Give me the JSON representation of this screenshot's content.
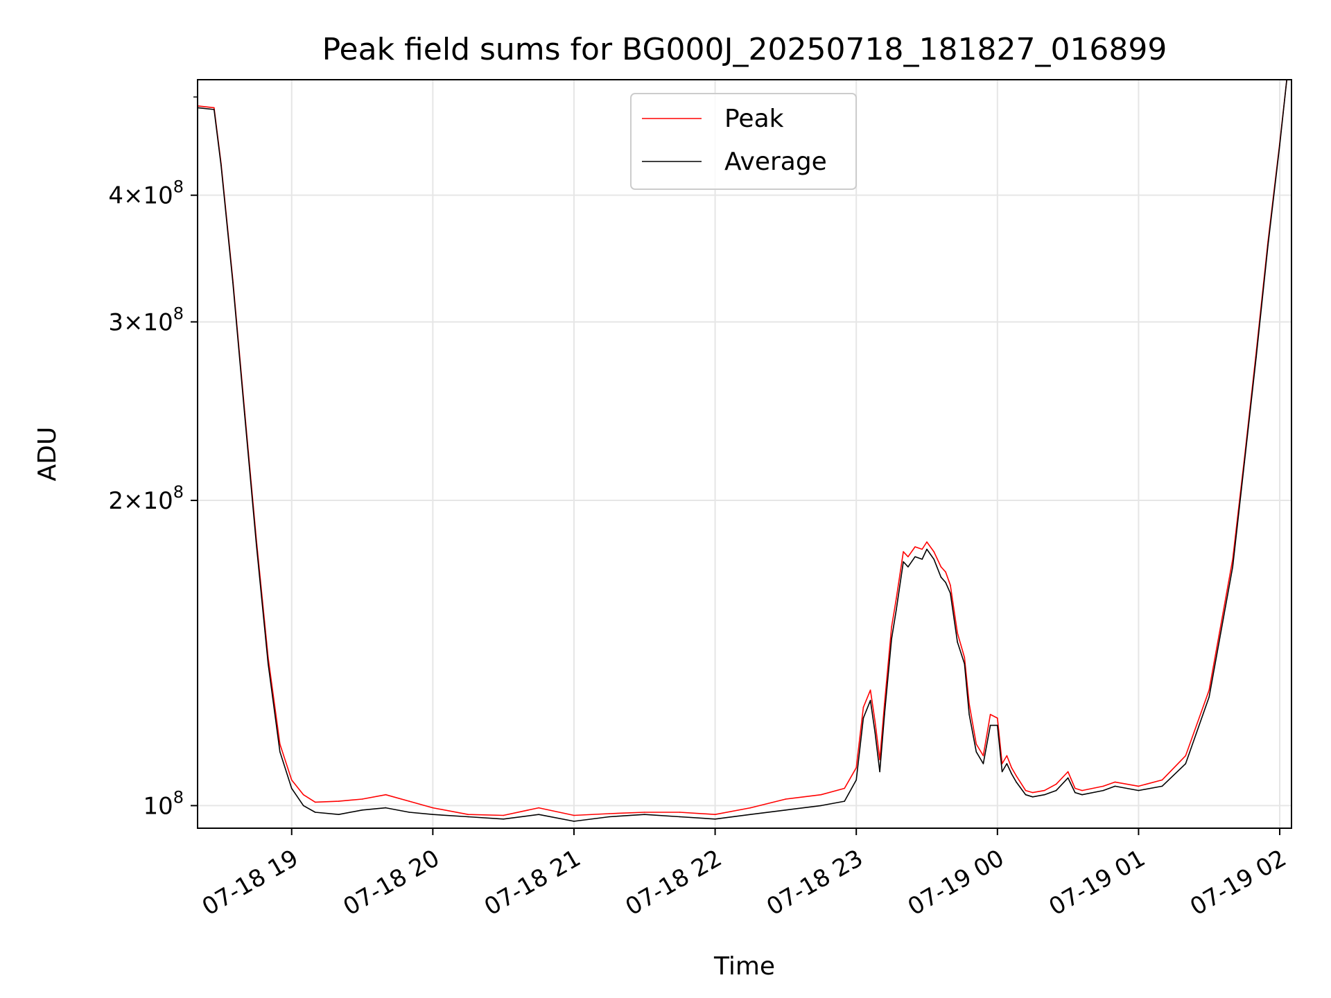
{
  "chart_data": {
    "type": "line",
    "title": "Peak field sums for BG000J_20250718_181827_016899",
    "xlabel": "Time",
    "ylabel": "ADU",
    "yscale": "log",
    "xlim": [
      "2025-07-18 18:20",
      "2025-07-19 02:05"
    ],
    "ylim": [
      95000000,
      520000000
    ],
    "x_ticks": [
      "2025-07-18 19:00",
      "2025-07-18 20:00",
      "2025-07-18 21:00",
      "2025-07-18 22:00",
      "2025-07-18 23:00",
      "2025-07-19 00:00",
      "2025-07-19 01:00",
      "2025-07-19 02:00"
    ],
    "x_tick_labels": [
      "07-18 19",
      "07-18 20",
      "07-18 21",
      "07-18 22",
      "07-18 23",
      "07-19 00",
      "07-19 01",
      "07-19 02"
    ],
    "y_ticks": [
      100000000,
      200000000,
      300000000,
      400000000
    ],
    "y_minor_ticks": [
      500000000
    ],
    "y_tick_labels": [
      {
        "coef": "",
        "exp": "8"
      },
      {
        "coef": "2",
        "exp": "8"
      },
      {
        "coef": "3",
        "exp": "8"
      },
      {
        "coef": "4",
        "exp": "8"
      }
    ],
    "grid": true,
    "legend_position": "upper center",
    "series": [
      {
        "name": "Peak",
        "color": "#ff0000",
        "x": [
          "2025-07-18 18:20",
          "2025-07-18 18:27",
          "2025-07-18 18:30",
          "2025-07-18 18:35",
          "2025-07-18 18:40",
          "2025-07-18 18:45",
          "2025-07-18 18:50",
          "2025-07-18 18:55",
          "2025-07-18 19:00",
          "2025-07-18 19:05",
          "2025-07-18 19:10",
          "2025-07-18 19:20",
          "2025-07-18 19:30",
          "2025-07-18 19:40",
          "2025-07-18 19:50",
          "2025-07-18 20:00",
          "2025-07-18 20:15",
          "2025-07-18 20:30",
          "2025-07-18 20:45",
          "2025-07-18 21:00",
          "2025-07-18 21:15",
          "2025-07-18 21:30",
          "2025-07-18 21:45",
          "2025-07-18 22:00",
          "2025-07-18 22:15",
          "2025-07-18 22:30",
          "2025-07-18 22:45",
          "2025-07-18 22:55",
          "2025-07-18 23:00",
          "2025-07-18 23:03",
          "2025-07-18 23:06",
          "2025-07-18 23:08",
          "2025-07-18 23:10",
          "2025-07-18 23:12",
          "2025-07-18 23:15",
          "2025-07-18 23:17",
          "2025-07-18 23:20",
          "2025-07-18 23:22",
          "2025-07-18 23:25",
          "2025-07-18 23:28",
          "2025-07-18 23:30",
          "2025-07-18 23:33",
          "2025-07-18 23:36",
          "2025-07-18 23:38",
          "2025-07-18 23:40",
          "2025-07-18 23:43",
          "2025-07-18 23:46",
          "2025-07-18 23:48",
          "2025-07-18 23:51",
          "2025-07-18 23:54",
          "2025-07-18 23:57",
          "2025-07-19 00:00",
          "2025-07-19 00:02",
          "2025-07-19 00:04",
          "2025-07-19 00:06",
          "2025-07-19 00:08",
          "2025-07-19 00:12",
          "2025-07-19 00:15",
          "2025-07-19 00:20",
          "2025-07-19 00:25",
          "2025-07-19 00:30",
          "2025-07-19 00:33",
          "2025-07-19 00:36",
          "2025-07-19 00:45",
          "2025-07-19 00:50",
          "2025-07-19 01:00",
          "2025-07-19 01:10",
          "2025-07-19 01:20",
          "2025-07-19 01:30",
          "2025-07-19 01:40",
          "2025-07-19 01:45",
          "2025-07-19 01:50",
          "2025-07-19 01:55",
          "2025-07-19 02:00",
          "2025-07-19 02:03"
        ],
        "values": [
          490000000,
          488000000,
          430000000,
          330000000,
          245000000,
          183000000,
          140000000,
          115000000,
          106000000,
          102500000,
          100800000,
          101000000,
          101500000,
          102500000,
          101000000,
          99500000,
          98000000,
          97800000,
          99500000,
          97800000,
          98200000,
          98500000,
          98500000,
          98000000,
          99500000,
          101500000,
          102500000,
          104000000,
          109000000,
          125000000,
          130000000,
          121000000,
          111000000,
          126000000,
          150000000,
          160000000,
          178000000,
          176000000,
          180000000,
          179000000,
          182000000,
          178000000,
          172000000,
          170000000,
          165000000,
          148000000,
          140000000,
          126000000,
          115000000,
          112000000,
          123000000,
          122000000,
          110000000,
          112000000,
          109000000,
          107000000,
          103500000,
          103000000,
          103500000,
          105000000,
          108000000,
          104000000,
          103500000,
          104500000,
          105500000,
          104500000,
          106000000,
          112000000,
          130000000,
          175000000,
          220000000,
          280000000,
          360000000,
          450000000,
          520000000
        ]
      },
      {
        "name": "Average",
        "color": "#000000",
        "x": [
          "2025-07-18 18:20",
          "2025-07-18 18:27",
          "2025-07-18 18:30",
          "2025-07-18 18:35",
          "2025-07-18 18:40",
          "2025-07-18 18:45",
          "2025-07-18 18:50",
          "2025-07-18 18:55",
          "2025-07-18 19:00",
          "2025-07-18 19:05",
          "2025-07-18 19:10",
          "2025-07-18 19:20",
          "2025-07-18 19:30",
          "2025-07-18 19:40",
          "2025-07-18 19:50",
          "2025-07-18 20:00",
          "2025-07-18 20:15",
          "2025-07-18 20:30",
          "2025-07-18 20:45",
          "2025-07-18 21:00",
          "2025-07-18 21:15",
          "2025-07-18 21:30",
          "2025-07-18 21:45",
          "2025-07-18 22:00",
          "2025-07-18 22:15",
          "2025-07-18 22:30",
          "2025-07-18 22:45",
          "2025-07-18 22:55",
          "2025-07-18 23:00",
          "2025-07-18 23:03",
          "2025-07-18 23:06",
          "2025-07-18 23:08",
          "2025-07-18 23:10",
          "2025-07-18 23:12",
          "2025-07-18 23:15",
          "2025-07-18 23:17",
          "2025-07-18 23:20",
          "2025-07-18 23:22",
          "2025-07-18 23:25",
          "2025-07-18 23:28",
          "2025-07-18 23:30",
          "2025-07-18 23:33",
          "2025-07-18 23:36",
          "2025-07-18 23:38",
          "2025-07-18 23:40",
          "2025-07-18 23:43",
          "2025-07-18 23:46",
          "2025-07-18 23:48",
          "2025-07-18 23:51",
          "2025-07-18 23:54",
          "2025-07-18 23:57",
          "2025-07-19 00:00",
          "2025-07-19 00:02",
          "2025-07-19 00:04",
          "2025-07-19 00:06",
          "2025-07-19 00:08",
          "2025-07-19 00:12",
          "2025-07-19 00:15",
          "2025-07-19 00:20",
          "2025-07-19 00:25",
          "2025-07-19 00:30",
          "2025-07-19 00:33",
          "2025-07-19 00:36",
          "2025-07-19 00:45",
          "2025-07-19 00:50",
          "2025-07-19 01:00",
          "2025-07-19 01:10",
          "2025-07-19 01:20",
          "2025-07-19 01:30",
          "2025-07-19 01:40",
          "2025-07-19 01:45",
          "2025-07-19 01:50",
          "2025-07-19 01:55",
          "2025-07-19 02:00",
          "2025-07-19 02:03"
        ],
        "values": [
          488000000,
          486000000,
          428000000,
          328000000,
          243000000,
          181000000,
          138000000,
          113000000,
          104000000,
          100000000,
          98500000,
          98000000,
          99000000,
          99500000,
          98500000,
          98000000,
          97500000,
          97000000,
          98000000,
          96500000,
          97500000,
          98000000,
          97500000,
          97000000,
          98000000,
          99000000,
          100000000,
          101000000,
          106000000,
          122000000,
          127000000,
          118000000,
          108000000,
          123000000,
          146000000,
          156000000,
          174000000,
          172000000,
          176000000,
          175000000,
          179000000,
          175000000,
          168000000,
          166000000,
          162000000,
          145000000,
          138000000,
          123000000,
          113000000,
          110000000,
          120000000,
          120000000,
          108000000,
          110000000,
          107500000,
          105500000,
          102500000,
          102000000,
          102500000,
          103500000,
          106500000,
          103000000,
          102500000,
          103500000,
          104500000,
          103500000,
          104500000,
          110000000,
          128000000,
          172000000,
          218000000,
          277000000,
          357000000,
          448000000,
          520000000
        ]
      }
    ]
  }
}
